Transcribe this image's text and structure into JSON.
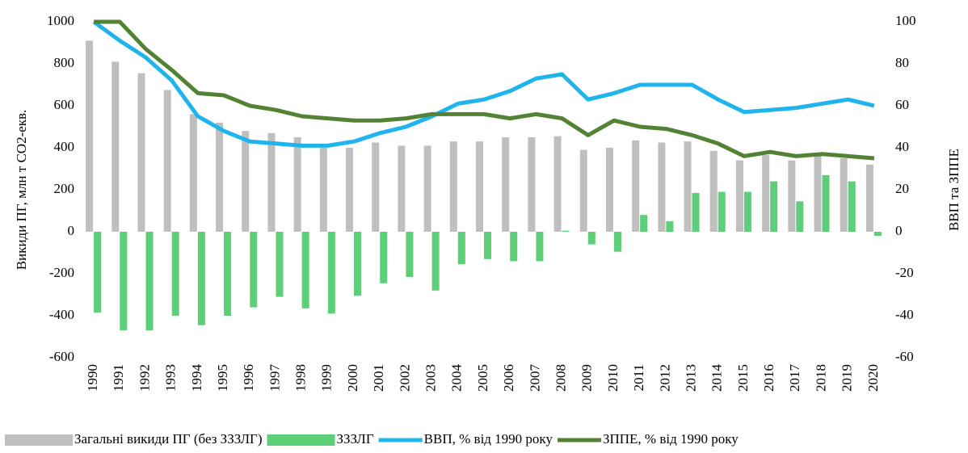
{
  "chart_data": {
    "type": "bar_line",
    "y_label": "Викиди ПГ, млн т СО2-екв.",
    "y2_label": "ВВП та ЗППЕ",
    "categories": [
      "1990",
      "1991",
      "1992",
      "1993",
      "1994",
      "1995",
      "1996",
      "1997",
      "1998",
      "1999",
      "2000",
      "2001",
      "2002",
      "2003",
      "2004",
      "2005",
      "2006",
      "2007",
      "2008",
      "2009",
      "2010",
      "2011",
      "2012",
      "2013",
      "2014",
      "2015",
      "2016",
      "2017",
      "2018",
      "2019",
      "2020"
    ],
    "ylim": [
      -600,
      1000
    ],
    "yticks": [
      -600,
      -400,
      -200,
      0,
      200,
      400,
      600,
      800,
      1000
    ],
    "y2lim": [
      -60,
      100
    ],
    "y2ticks": [
      -60,
      -40,
      -20,
      0,
      20,
      40,
      60,
      80,
      100
    ],
    "legend": "bottom",
    "series": [
      {
        "name": "Загальні викиди ПГ (без ЗЗЗЛГ)",
        "type": "bar",
        "color": "#bfbfbf",
        "values": [
          910,
          810,
          755,
          675,
          560,
          520,
          480,
          470,
          450,
          400,
          400,
          425,
          410,
          410,
          430,
          430,
          450,
          450,
          455,
          390,
          400,
          435,
          425,
          430,
          385,
          340,
          365,
          340,
          360,
          350,
          320
        ]
      },
      {
        "name": "ЗЗЗЛГ",
        "type": "bar",
        "color": "#5ccf78",
        "values": [
          -385,
          -470,
          -470,
          -400,
          -445,
          -400,
          -360,
          -310,
          -365,
          -390,
          -305,
          -245,
          -215,
          -280,
          -155,
          -130,
          -140,
          -140,
          5,
          -60,
          -95,
          80,
          50,
          185,
          190,
          190,
          240,
          145,
          270,
          240,
          -20
        ]
      },
      {
        "name": "ВВП, % від 1990 року",
        "type": "line",
        "axis": "y2",
        "color": "#1fb4ee",
        "values": [
          100,
          91,
          83,
          72,
          55,
          48,
          43,
          42,
          41,
          41,
          43,
          47,
          50,
          55,
          61,
          63,
          67,
          73,
          75,
          63,
          66,
          70,
          70,
          70,
          63,
          57,
          58,
          59,
          61,
          63,
          60
        ]
      },
      {
        "name": "ЗППЕ, % від 1990 року",
        "type": "line",
        "axis": "y2",
        "color": "#548235",
        "values": [
          100,
          100,
          87,
          77,
          66,
          65,
          60,
          58,
          55,
          54,
          53,
          53,
          54,
          56,
          56,
          56,
          54,
          56,
          54,
          46,
          53,
          50,
          49,
          46,
          42,
          36,
          38,
          36,
          37,
          36,
          35
        ]
      }
    ]
  }
}
